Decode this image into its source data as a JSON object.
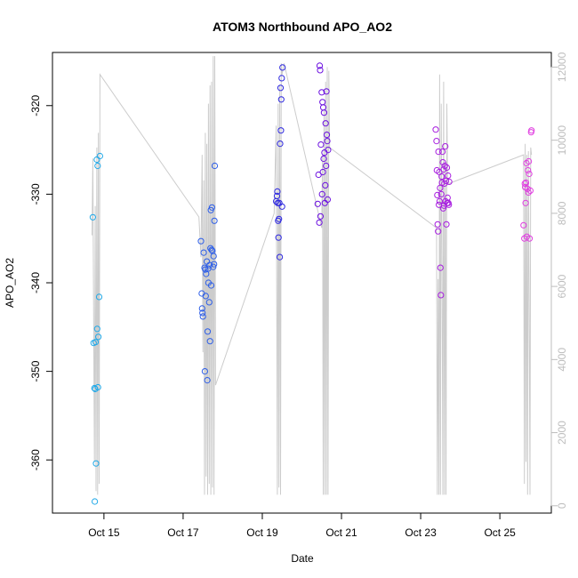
{
  "chart_data": {
    "type": "scatter",
    "title": "ATOM3 Northbound APO_AO2",
    "xlabel": "Date",
    "ylabel": "APO_AO2",
    "x_ticks": [
      {
        "day": 15,
        "label": "Oct 15"
      },
      {
        "day": 17,
        "label": "Oct 17"
      },
      {
        "day": 19,
        "label": "Oct 19"
      },
      {
        "day": 21,
        "label": "Oct 21"
      },
      {
        "day": 23,
        "label": "Oct 23"
      },
      {
        "day": 25,
        "label": "Oct 25"
      }
    ],
    "xlim": [
      13.7,
      26.3
    ],
    "ylim": [
      -366,
      -314
    ],
    "y_ticks": [
      -360,
      -350,
      -340,
      -330,
      -320
    ],
    "y2lim": [
      -200,
      12400
    ],
    "y2_ticks": [
      0,
      2000,
      4000,
      6000,
      8000,
      10000,
      12000
    ],
    "y2_series_color": "#cccccc",
    "series": [
      {
        "color": "#21a9e8",
        "points": [
          [
            14.72,
            -332.6
          ],
          [
            14.74,
            -346.8
          ],
          [
            14.76,
            -351.9
          ],
          [
            14.77,
            -364.7
          ],
          [
            14.78,
            -352.0
          ],
          [
            14.79,
            -346.7
          ],
          [
            14.8,
            -360.4
          ],
          [
            14.82,
            -326.1
          ],
          [
            14.83,
            -345.2
          ],
          [
            14.84,
            -326.8
          ],
          [
            14.85,
            -351.8
          ],
          [
            14.86,
            -346.1
          ],
          [
            14.88,
            -341.6
          ],
          [
            14.9,
            -325.7
          ]
        ]
      },
      {
        "color": "#2d5ee8",
        "points": [
          [
            17.45,
            -335.3
          ],
          [
            17.47,
            -341.2
          ],
          [
            17.48,
            -342.9
          ],
          [
            17.49,
            -343.4
          ],
          [
            17.5,
            -343.8
          ],
          [
            17.52,
            -336.6
          ],
          [
            17.54,
            -338.3
          ],
          [
            17.55,
            -350.0
          ],
          [
            17.56,
            -338.5
          ],
          [
            17.57,
            -341.5
          ],
          [
            17.58,
            -339.0
          ],
          [
            17.6,
            -337.6
          ],
          [
            17.61,
            -351.0
          ],
          [
            17.62,
            -345.5
          ],
          [
            17.63,
            -338.4
          ],
          [
            17.64,
            -340.0
          ],
          [
            17.66,
            -342.2
          ],
          [
            17.67,
            -338.0
          ],
          [
            17.68,
            -346.6
          ],
          [
            17.69,
            -336.1
          ],
          [
            17.7,
            -331.8
          ],
          [
            17.71,
            -340.3
          ],
          [
            17.72,
            -336.3
          ],
          [
            17.73,
            -331.5
          ],
          [
            17.74,
            -336.4
          ],
          [
            17.76,
            -338.2
          ],
          [
            17.77,
            -337.0
          ],
          [
            17.78,
            -337.9
          ],
          [
            17.79,
            -333.0
          ],
          [
            17.8,
            -326.8
          ]
        ]
      },
      {
        "color": "#2e28e0",
        "points": [
          [
            19.35,
            -330.8
          ],
          [
            19.37,
            -330.2
          ],
          [
            19.38,
            -329.7
          ],
          [
            19.39,
            -331.0
          ],
          [
            19.4,
            -333.0
          ],
          [
            19.41,
            -334.9
          ],
          [
            19.42,
            -332.8
          ],
          [
            19.43,
            -331.0
          ],
          [
            19.44,
            -337.1
          ],
          [
            19.45,
            -324.3
          ],
          [
            19.46,
            -318.0
          ],
          [
            19.47,
            -322.8
          ],
          [
            19.48,
            -319.3
          ],
          [
            19.49,
            -316.9
          ],
          [
            19.5,
            -331.4
          ],
          [
            19.51,
            -315.7
          ]
        ]
      },
      {
        "color": "#6c10e0",
        "points": [
          [
            20.4,
            -331.1
          ],
          [
            20.42,
            -327.8
          ],
          [
            20.44,
            -333.2
          ],
          [
            20.45,
            -315.5
          ],
          [
            20.46,
            -316.0
          ],
          [
            20.47,
            -332.5
          ],
          [
            20.48,
            -324.4
          ],
          [
            20.5,
            -318.5
          ],
          [
            20.51,
            -330.0
          ],
          [
            20.52,
            -319.6
          ],
          [
            20.53,
            -327.5
          ],
          [
            20.54,
            -320.2
          ],
          [
            20.55,
            -326.0
          ],
          [
            20.56,
            -320.8
          ],
          [
            20.57,
            -325.3
          ],
          [
            20.58,
            -331.0
          ],
          [
            20.59,
            -329.0
          ],
          [
            20.6,
            -322.0
          ],
          [
            20.61,
            -326.8
          ],
          [
            20.62,
            -318.4
          ],
          [
            20.63,
            -323.3
          ],
          [
            20.64,
            -324.0
          ],
          [
            20.65,
            -330.6
          ],
          [
            20.66,
            -325.0
          ]
        ]
      },
      {
        "color": "#a81ee0",
        "points": [
          [
            23.38,
            -322.7
          ],
          [
            23.4,
            -324.0
          ],
          [
            23.41,
            -327.3
          ],
          [
            23.42,
            -330.1
          ],
          [
            23.43,
            -333.4
          ],
          [
            23.44,
            -334.2
          ],
          [
            23.45,
            -325.2
          ],
          [
            23.46,
            -331.2
          ],
          [
            23.47,
            -327.5
          ],
          [
            23.48,
            -330.8
          ],
          [
            23.49,
            -329.3
          ],
          [
            23.5,
            -338.3
          ],
          [
            23.51,
            -341.4
          ],
          [
            23.52,
            -330.0
          ],
          [
            23.53,
            -328.0
          ],
          [
            23.54,
            -328.7
          ],
          [
            23.55,
            -325.2
          ],
          [
            23.56,
            -326.4
          ],
          [
            23.57,
            -331.6
          ],
          [
            23.58,
            -327.2
          ],
          [
            23.59,
            -331.3
          ],
          [
            23.6,
            -328.8
          ],
          [
            23.61,
            -326.8
          ],
          [
            23.62,
            -324.6
          ],
          [
            23.63,
            -330.8
          ],
          [
            23.64,
            -328.5
          ],
          [
            23.65,
            -333.4
          ],
          [
            23.66,
            -327.0
          ],
          [
            23.67,
            -331.0
          ],
          [
            23.68,
            -330.4
          ],
          [
            23.69,
            -327.9
          ],
          [
            23.7,
            -331.0
          ],
          [
            23.71,
            -331.2
          ],
          [
            23.72,
            -328.6
          ]
        ]
      },
      {
        "color": "#e040e0",
        "points": [
          [
            25.6,
            -333.5
          ],
          [
            25.62,
            -335.0
          ],
          [
            25.63,
            -328.8
          ],
          [
            25.64,
            -329.2
          ],
          [
            25.65,
            -331.0
          ],
          [
            25.66,
            -328.7
          ],
          [
            25.67,
            -326.5
          ],
          [
            25.68,
            -334.8
          ],
          [
            25.7,
            -329.4
          ],
          [
            25.71,
            -327.3
          ],
          [
            25.72,
            -329.8
          ],
          [
            25.73,
            -326.3
          ],
          [
            25.74,
            -327.7
          ],
          [
            25.75,
            -335.0
          ],
          [
            25.77,
            -329.6
          ],
          [
            25.79,
            -323.0
          ],
          [
            25.8,
            -322.8
          ]
        ]
      }
    ],
    "secondary_line": [
      [
        14.7,
        7400
      ],
      [
        14.72,
        9500
      ],
      [
        14.74,
        5200
      ],
      [
        14.76,
        1200
      ],
      [
        14.78,
        8200
      ],
      [
        14.8,
        400
      ],
      [
        14.82,
        9800
      ],
      [
        14.84,
        300
      ],
      [
        14.86,
        10200
      ],
      [
        14.88,
        600
      ],
      [
        14.9,
        11800
      ],
      [
        17.4,
        7900
      ],
      [
        17.45,
        6800
      ],
      [
        17.48,
        9600
      ],
      [
        17.5,
        4200
      ],
      [
        17.52,
        8900
      ],
      [
        17.54,
        300
      ],
      [
        17.56,
        10200
      ],
      [
        17.58,
        800
      ],
      [
        17.6,
        9900
      ],
      [
        17.62,
        300
      ],
      [
        17.64,
        11000
      ],
      [
        17.66,
        600
      ],
      [
        17.68,
        11500
      ],
      [
        17.7,
        300
      ],
      [
        17.72,
        11600
      ],
      [
        17.74,
        500
      ],
      [
        17.76,
        12300
      ],
      [
        17.78,
        300
      ],
      [
        17.8,
        12300
      ],
      [
        17.82,
        3300
      ],
      [
        19.3,
        8000
      ],
      [
        19.35,
        10400
      ],
      [
        19.38,
        300
      ],
      [
        19.4,
        11000
      ],
      [
        19.42,
        500
      ],
      [
        19.44,
        11500
      ],
      [
        19.46,
        300
      ],
      [
        19.48,
        12100
      ],
      [
        19.5,
        11800
      ],
      [
        19.55,
        12100
      ],
      [
        20.5,
        7600
      ],
      [
        20.52,
        9600
      ],
      [
        20.54,
        300
      ],
      [
        20.56,
        10800
      ],
      [
        20.58,
        300
      ],
      [
        20.6,
        11600
      ],
      [
        20.62,
        300
      ],
      [
        20.64,
        12000
      ],
      [
        20.66,
        300
      ],
      [
        20.68,
        11900
      ],
      [
        20.7,
        9800
      ],
      [
        23.4,
        7600
      ],
      [
        23.42,
        300
      ],
      [
        23.44,
        6200
      ],
      [
        23.46,
        300
      ],
      [
        23.48,
        11800
      ],
      [
        23.5,
        300
      ],
      [
        23.52,
        11000
      ],
      [
        23.54,
        6600
      ],
      [
        23.56,
        300
      ],
      [
        23.58,
        11600
      ],
      [
        23.6,
        300
      ],
      [
        23.62,
        9400
      ],
      [
        23.64,
        300
      ],
      [
        23.66,
        11000
      ],
      [
        23.68,
        8800
      ],
      [
        25.6,
        9600
      ],
      [
        25.62,
        600
      ],
      [
        25.64,
        9900
      ],
      [
        25.66,
        1200
      ],
      [
        25.68,
        9600
      ],
      [
        25.7,
        300
      ],
      [
        25.72,
        9700
      ],
      [
        25.74,
        5400
      ],
      [
        25.76,
        300
      ],
      [
        25.78,
        9800
      ],
      [
        25.8,
        9600
      ]
    ]
  }
}
